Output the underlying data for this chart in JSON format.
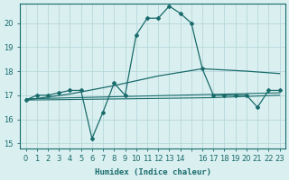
{
  "xlabel": "Humidex (Indice chaleur)",
  "bg_color": "#d9eff0",
  "grid_color": "#b8d8dc",
  "line_color": "#1a6b6b",
  "xlim": [
    -0.5,
    23.5
  ],
  "ylim": [
    14.8,
    20.8
  ],
  "yticks": [
    15,
    16,
    17,
    18,
    19,
    20
  ],
  "xticks": [
    0,
    1,
    2,
    3,
    4,
    5,
    6,
    7,
    8,
    9,
    10,
    11,
    12,
    13,
    14,
    15,
    16,
    17,
    18,
    19,
    20,
    21,
    22,
    23
  ],
  "xtick_labels": [
    "0",
    "1",
    "2",
    "3",
    "4",
    "5",
    "6",
    "7",
    "8",
    "9",
    "10",
    "11",
    "12",
    "13",
    "14",
    "",
    "16",
    "17",
    "18",
    "19",
    "20",
    "21",
    "22",
    "23"
  ],
  "line1_x": [
    0,
    1,
    2,
    3,
    4,
    5,
    6,
    7,
    8,
    9,
    10,
    11,
    12,
    13,
    14,
    15,
    16,
    17,
    18,
    19,
    20,
    21,
    22,
    23
  ],
  "line1_y": [
    16.8,
    17.0,
    17.0,
    17.1,
    17.2,
    17.2,
    15.2,
    16.3,
    17.5,
    17.0,
    19.5,
    20.2,
    20.2,
    20.7,
    20.4,
    20.0,
    18.1,
    17.0,
    17.0,
    17.0,
    17.0,
    16.5,
    17.2,
    17.2
  ],
  "line2_x": [
    0,
    4,
    8,
    12,
    16,
    20,
    23
  ],
  "line2_y": [
    16.8,
    17.05,
    17.4,
    17.8,
    18.1,
    18.0,
    17.9
  ],
  "line3_x": [
    0,
    23
  ],
  "line3_y": [
    16.85,
    17.1
  ],
  "line4_x": [
    0,
    9,
    17,
    23
  ],
  "line4_y": [
    16.8,
    16.85,
    16.9,
    17.0
  ]
}
